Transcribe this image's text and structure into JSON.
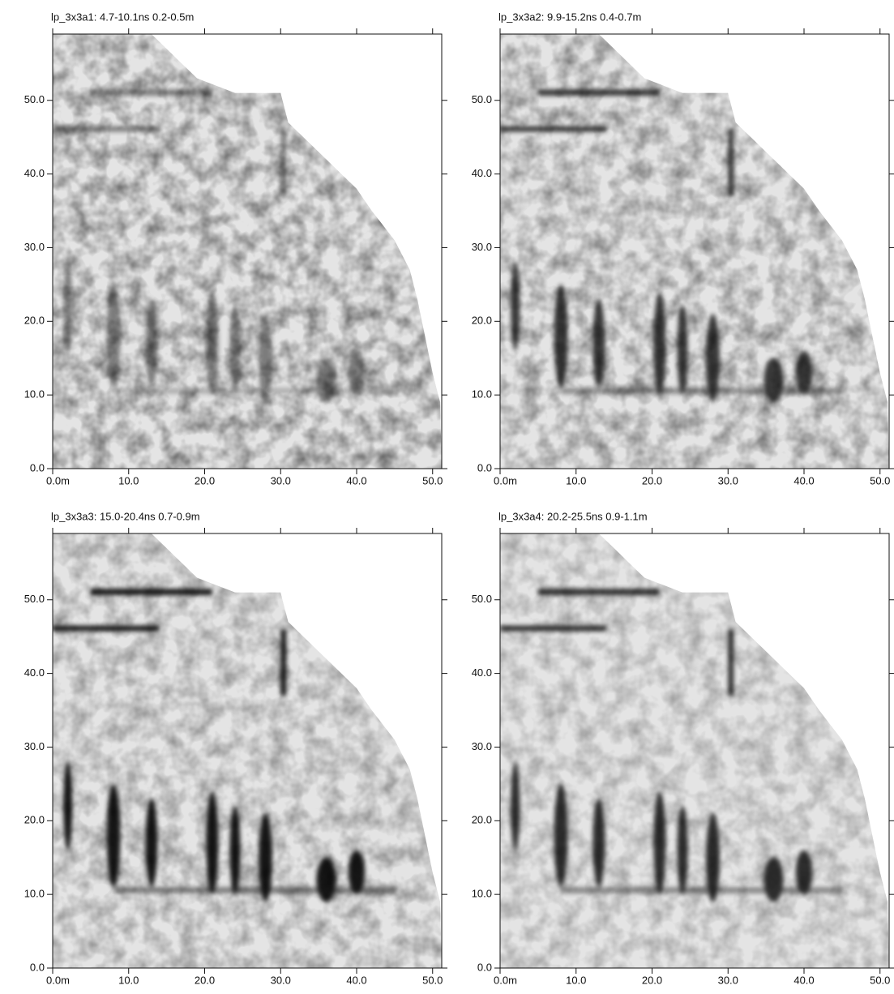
{
  "chart_data": [
    {
      "type": "map",
      "title": "lp_3x3a1:  4.7-10.1ns  0.2-0.5m",
      "xlim": [
        0,
        51.2
      ],
      "ylim": [
        0,
        59
      ],
      "xticks": [
        {
          "value": 0,
          "label": "0.0m"
        },
        {
          "value": 10,
          "label": "10.0"
        },
        {
          "value": 20,
          "label": "20.0"
        },
        {
          "value": 30,
          "label": "30.0"
        },
        {
          "value": 40,
          "label": "40.0"
        },
        {
          "value": 50,
          "label": "50.0"
        }
      ],
      "yticks": [
        {
          "value": 0,
          "label": "0.0"
        },
        {
          "value": 10,
          "label": "10.0"
        },
        {
          "value": 20,
          "label": "20.0"
        },
        {
          "value": 30,
          "label": "30.0"
        },
        {
          "value": 40,
          "label": "40.0"
        },
        {
          "value": 50,
          "label": "50.0"
        }
      ]
    },
    {
      "type": "map",
      "title": "lp_3x3a2:  9.9-15.2ns  0.4-0.7m",
      "xlim": [
        0,
        51.2
      ],
      "ylim": [
        0,
        59
      ],
      "xticks": [
        {
          "value": 0,
          "label": "0.0m"
        },
        {
          "value": 10,
          "label": "10.0"
        },
        {
          "value": 20,
          "label": "20.0"
        },
        {
          "value": 30,
          "label": "30.0"
        },
        {
          "value": 40,
          "label": "40.0"
        },
        {
          "value": 50,
          "label": "50.0"
        }
      ],
      "yticks": [
        {
          "value": 0,
          "label": "0.0"
        },
        {
          "value": 10,
          "label": "10.0"
        },
        {
          "value": 20,
          "label": "20.0"
        },
        {
          "value": 30,
          "label": "30.0"
        },
        {
          "value": 40,
          "label": "40.0"
        },
        {
          "value": 50,
          "label": "50.0"
        }
      ]
    },
    {
      "type": "map",
      "title": "lp_3x3a3:  15.0-20.4ns  0.7-0.9m",
      "xlim": [
        0,
        51.2
      ],
      "ylim": [
        0,
        59
      ],
      "xticks": [
        {
          "value": 0,
          "label": "0.0m"
        },
        {
          "value": 10,
          "label": "10.0"
        },
        {
          "value": 20,
          "label": "20.0"
        },
        {
          "value": 30,
          "label": "30.0"
        },
        {
          "value": 40,
          "label": "40.0"
        },
        {
          "value": 50,
          "label": "50.0"
        }
      ],
      "yticks": [
        {
          "value": 0,
          "label": "0.0"
        },
        {
          "value": 10,
          "label": "10.0"
        },
        {
          "value": 20,
          "label": "20.0"
        },
        {
          "value": 30,
          "label": "30.0"
        },
        {
          "value": 40,
          "label": "40.0"
        },
        {
          "value": 50,
          "label": "50.0"
        }
      ]
    },
    {
      "type": "map",
      "title": "lp_3x3a4:  20.2-25.5ns  0.9-1.1m",
      "xlim": [
        0,
        51.2
      ],
      "ylim": [
        0,
        59
      ],
      "xticks": [
        {
          "value": 0,
          "label": "0.0m"
        },
        {
          "value": 10,
          "label": "10.0"
        },
        {
          "value": 20,
          "label": "20.0"
        },
        {
          "value": 30,
          "label": "30.0"
        },
        {
          "value": 40,
          "label": "40.0"
        },
        {
          "value": 50,
          "label": "50.0"
        }
      ],
      "yticks": [
        {
          "value": 0,
          "label": "0.0"
        },
        {
          "value": 10,
          "label": "10.0"
        },
        {
          "value": 20,
          "label": "20.0"
        },
        {
          "value": 30,
          "label": "30.0"
        },
        {
          "value": 40,
          "label": "40.0"
        },
        {
          "value": 50,
          "label": "50.0"
        }
      ]
    }
  ]
}
